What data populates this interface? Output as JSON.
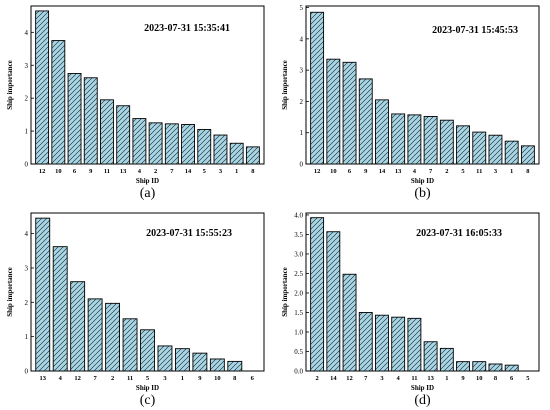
{
  "chart_data": [
    {
      "type": "bar",
      "panel_label": "(a)",
      "annotation": "2023-07-31 15:35:41",
      "xlabel": "Ship ID",
      "ylabel": "Ship importance",
      "categories": [
        "12",
        "10",
        "6",
        "9",
        "11",
        "13",
        "4",
        "2",
        "7",
        "14",
        "5",
        "3",
        "1",
        "8"
      ],
      "values": [
        4.65,
        3.75,
        2.75,
        2.62,
        1.95,
        1.77,
        1.38,
        1.25,
        1.22,
        1.2,
        1.05,
        0.88,
        0.63,
        0.52
      ],
      "ylim": [
        0,
        4.8
      ],
      "yticks": [
        "0",
        "1",
        "2",
        "3",
        "4"
      ],
      "bar_fill": "#a6d6e6",
      "hatch": "diagonal",
      "grid": false,
      "legend": "none"
    },
    {
      "type": "bar",
      "panel_label": "(b)",
      "annotation": "2023-07-31 15:45:53",
      "xlabel": "Ship ID",
      "ylabel": "Ship importance",
      "categories": [
        "12",
        "10",
        "6",
        "9",
        "14",
        "13",
        "4",
        "7",
        "2",
        "5",
        "11",
        "3",
        "1",
        "8"
      ],
      "values": [
        4.85,
        3.35,
        3.25,
        2.72,
        2.05,
        1.6,
        1.57,
        1.52,
        1.4,
        1.22,
        1.02,
        0.92,
        0.73,
        0.58
      ],
      "ylim": [
        0,
        5.05
      ],
      "yticks": [
        "0",
        "1",
        "2",
        "3",
        "4",
        "5"
      ],
      "bar_fill": "#a6d6e6",
      "hatch": "diagonal",
      "grid": false,
      "legend": "none"
    },
    {
      "type": "bar",
      "panel_label": "(c)",
      "annotation": "2023-07-31 15:55:23",
      "xlabel": "Ship ID",
      "ylabel": "Ship importance",
      "categories": [
        "13",
        "4",
        "12",
        "7",
        "2",
        "11",
        "5",
        "3",
        "1",
        "9",
        "10",
        "8",
        "6"
      ],
      "values": [
        4.45,
        3.62,
        2.6,
        2.1,
        1.97,
        1.52,
        1.2,
        0.73,
        0.65,
        0.52,
        0.35,
        0.28,
        0
      ],
      "ylim": [
        0,
        4.6
      ],
      "yticks": [
        "0",
        "1",
        "2",
        "3",
        "4"
      ],
      "bar_fill": "#a6d6e6",
      "hatch": "diagonal",
      "grid": false,
      "legend": "none"
    },
    {
      "type": "bar",
      "panel_label": "(d)",
      "annotation": "2023-07-31 16:05:33",
      "xlabel": "Ship ID",
      "ylabel": "Ship importance",
      "categories": [
        "2",
        "14",
        "12",
        "7",
        "3",
        "4",
        "11",
        "13",
        "1",
        "9",
        "10",
        "8",
        "6",
        "5"
      ],
      "values": [
        3.93,
        3.57,
        2.48,
        1.5,
        1.43,
        1.38,
        1.35,
        0.75,
        0.58,
        0.24,
        0.24,
        0.18,
        0.15,
        0
      ],
      "ylim": [
        0,
        4.05
      ],
      "yticks": [
        "0.0",
        "0.5",
        "1.0",
        "1.5",
        "2.0",
        "2.5",
        "3.0",
        "3.5",
        "4.0"
      ],
      "bar_fill": "#a6d6e6",
      "hatch": "diagonal",
      "grid": false,
      "legend": "none"
    }
  ]
}
